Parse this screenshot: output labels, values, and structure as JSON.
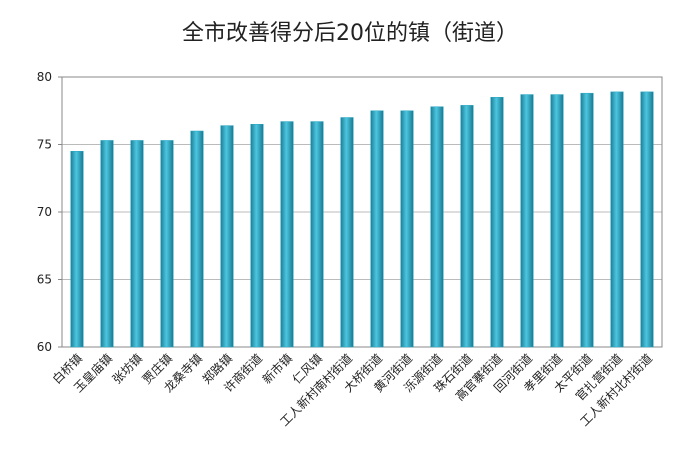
{
  "chart_data": {
    "type": "bar",
    "title": "全市改善得分后20位的镇（街道）",
    "categories": [
      "白桥镇",
      "玉皇庙镇",
      "张坊镇",
      "贾庄镇",
      "龙桑寺镇",
      "郑路镇",
      "许商街道",
      "新市镇",
      "仁风镇",
      "工人新村南村街道",
      "大桥街道",
      "黄河街道",
      "泺源街道",
      "珠石街道",
      "高官寨街道",
      "回河街道",
      "孝里街道",
      "太平街道",
      "官扎营街道",
      "工人新村北村街道"
    ],
    "values": [
      74.5,
      75.3,
      75.3,
      75.3,
      76.0,
      76.4,
      76.5,
      76.7,
      76.7,
      77.0,
      77.5,
      77.5,
      77.8,
      77.9,
      78.5,
      78.7,
      78.7,
      78.8,
      78.9,
      78.9
    ],
    "color": "#2aa6c2",
    "ylim": [
      60,
      80
    ],
    "yticks": [
      60,
      65,
      70,
      75,
      80
    ],
    "grid": true
  }
}
